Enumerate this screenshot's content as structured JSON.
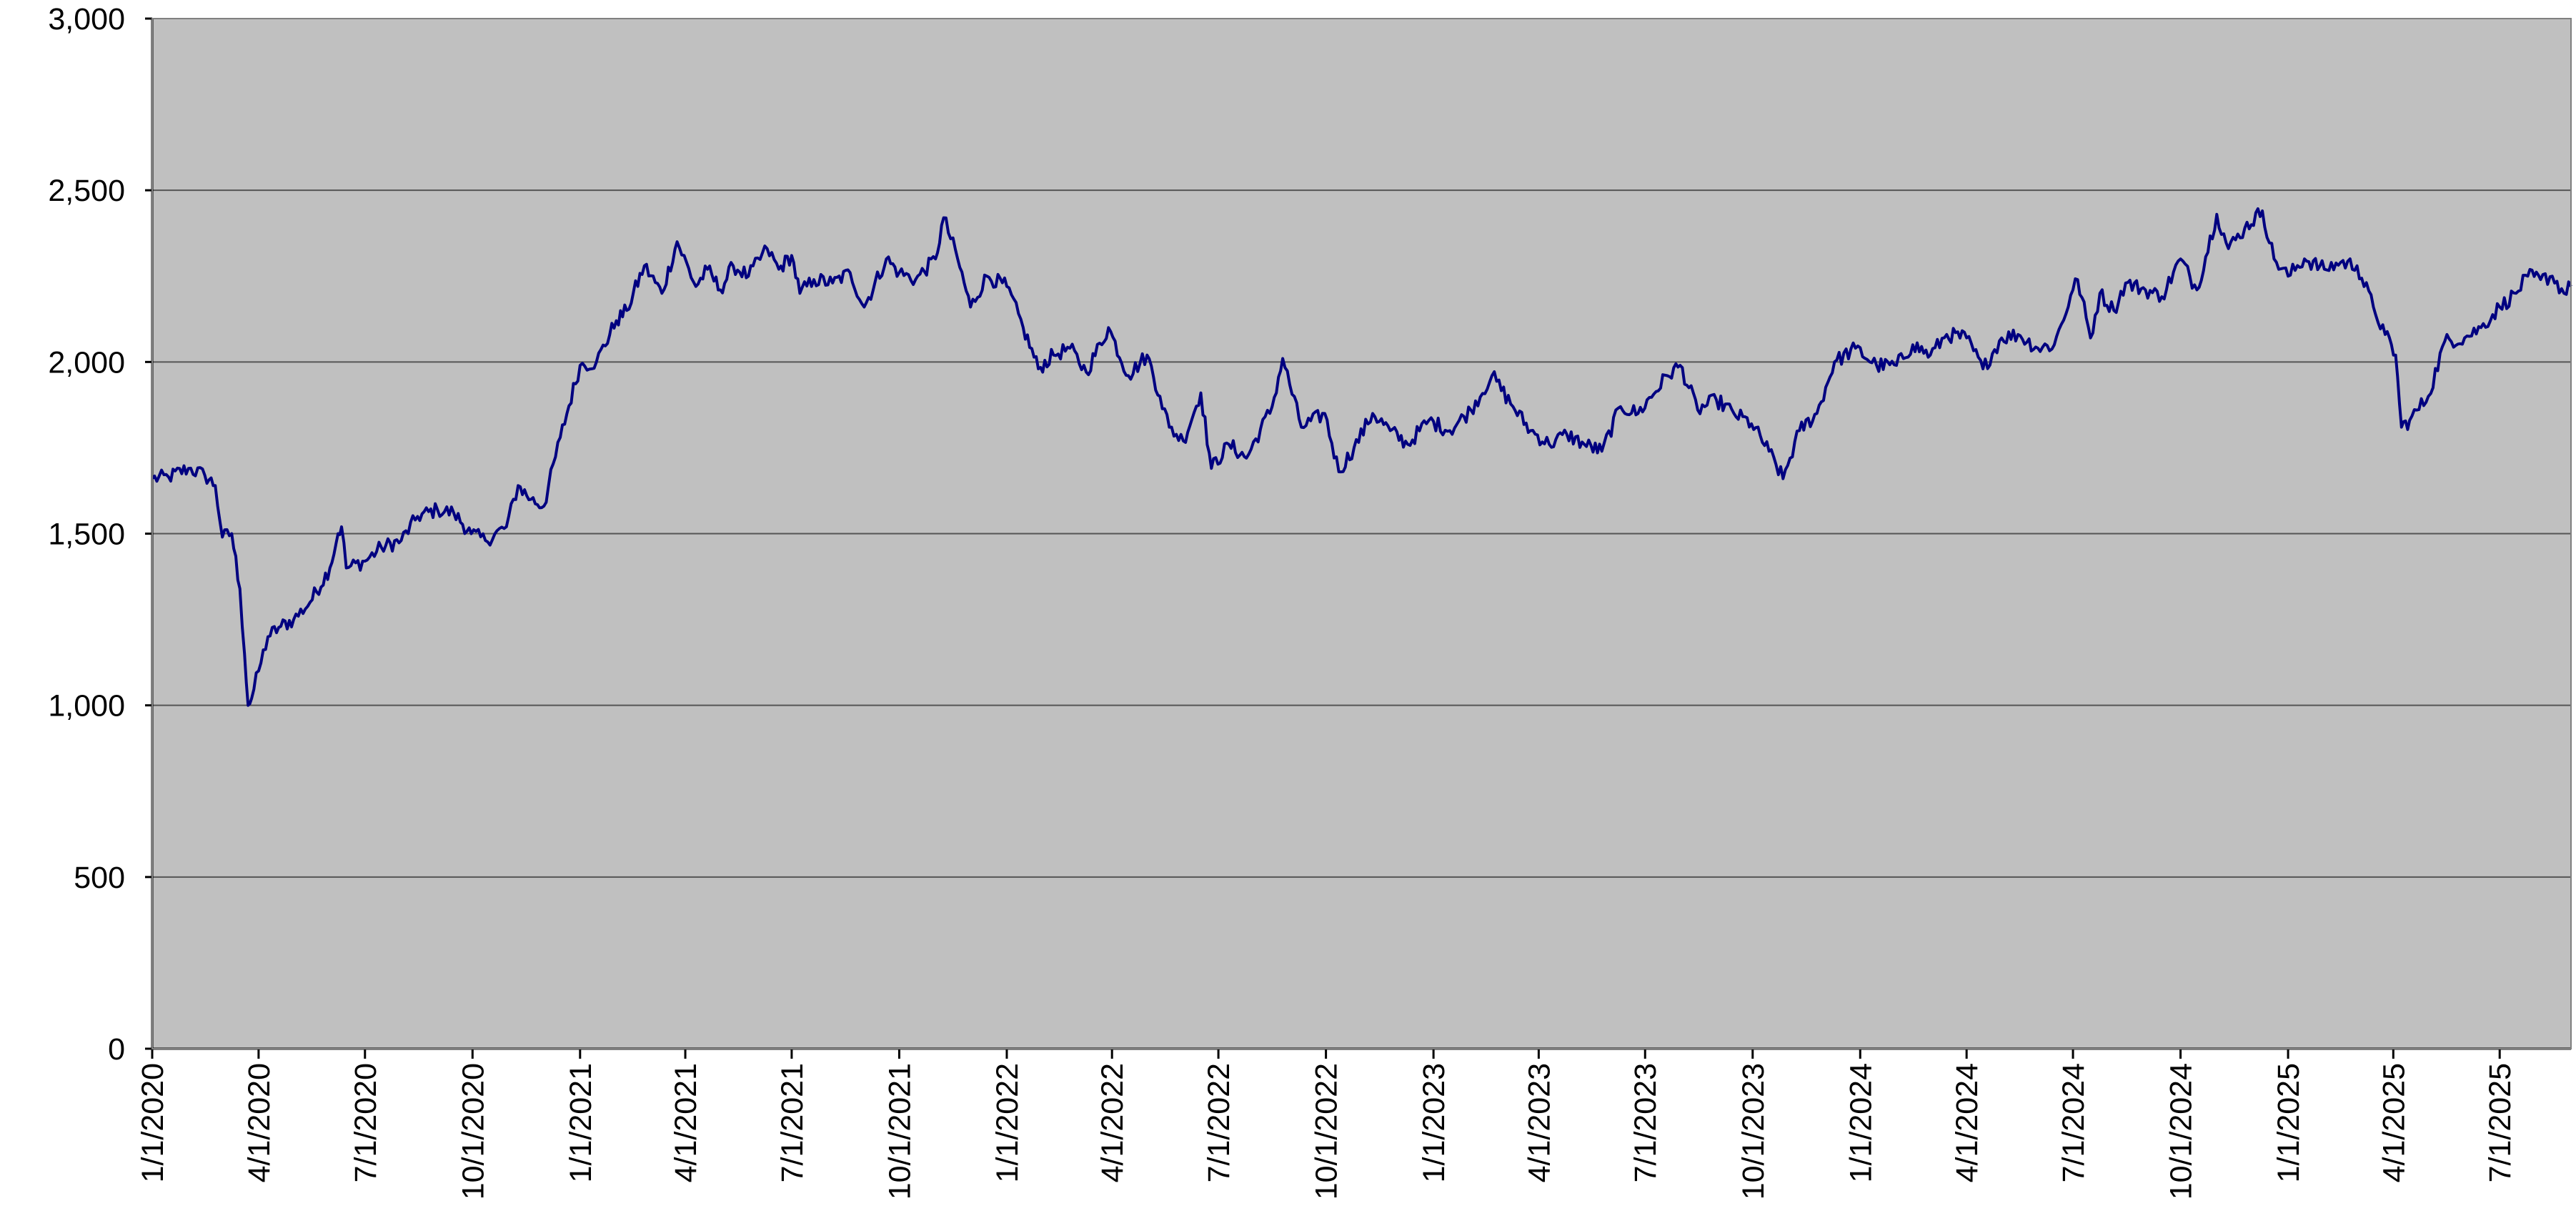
{
  "chart_data": {
    "type": "line",
    "title": "",
    "xlabel": "",
    "ylabel": "",
    "ylim": [
      0,
      3000
    ],
    "yticks": [
      "0",
      "500",
      "1,000",
      "1,500",
      "2,000",
      "2,500",
      "3,000"
    ],
    "ytick_values": [
      0,
      500,
      1000,
      1500,
      2000,
      2500,
      3000
    ],
    "xlim": [
      "2020-01-01",
      "2025-08-31"
    ],
    "xticks": [
      "1/1/2020",
      "4/1/2020",
      "7/1/2020",
      "10/1/2020",
      "1/1/2021",
      "4/1/2021",
      "7/1/2021",
      "10/1/2021",
      "1/1/2022",
      "4/1/2022",
      "7/1/2022",
      "10/1/2022",
      "1/1/2023",
      "4/1/2023",
      "7/1/2023",
      "10/1/2023",
      "1/1/2024",
      "4/1/2024",
      "7/1/2024",
      "10/1/2024",
      "1/1/2025",
      "4/1/2025",
      "7/1/2025"
    ],
    "xtick_dates": [
      "2020-01-01",
      "2020-04-01",
      "2020-07-01",
      "2020-10-01",
      "2021-01-01",
      "2021-04-01",
      "2021-07-01",
      "2021-10-01",
      "2022-01-01",
      "2022-04-01",
      "2022-07-01",
      "2022-10-01",
      "2023-01-01",
      "2023-04-01",
      "2023-07-01",
      "2023-10-01",
      "2024-01-01",
      "2024-04-01",
      "2024-07-01",
      "2024-10-01",
      "2025-01-01",
      "2025-04-01",
      "2025-07-01"
    ],
    "grid": true,
    "legend": "none",
    "colors": {
      "plot_bg": "#c0c0c0",
      "line": "#000080",
      "grid": "#555555",
      "axis": "#000000"
    },
    "series": [
      {
        "x": [
          "2020-01-01",
          "2020-01-15",
          "2020-02-01",
          "2020-02-15",
          "2020-02-24",
          "2020-03-01",
          "2020-03-09",
          "2020-03-16",
          "2020-03-20",
          "2020-03-23",
          "2020-03-26",
          "2020-04-01",
          "2020-04-09",
          "2020-04-20",
          "2020-05-01",
          "2020-05-15",
          "2020-06-01",
          "2020-06-08",
          "2020-06-11",
          "2020-06-15",
          "2020-07-01",
          "2020-07-15",
          "2020-08-01",
          "2020-08-15",
          "2020-09-01",
          "2020-09-15",
          "2020-09-30",
          "2020-10-12",
          "2020-10-30",
          "2020-11-09",
          "2020-11-20",
          "2020-12-01",
          "2020-12-15",
          "2021-01-01",
          "2021-01-15",
          "2021-02-01",
          "2021-02-10",
          "2021-02-25",
          "2021-03-12",
          "2021-03-25",
          "2021-04-10",
          "2021-04-20",
          "2021-05-01",
          "2021-05-12",
          "2021-05-25",
          "2021-06-10",
          "2021-06-20",
          "2021-07-01",
          "2021-07-08",
          "2021-07-20",
          "2021-08-05",
          "2021-08-20",
          "2021-09-01",
          "2021-09-20",
          "2021-10-01",
          "2021-10-15",
          "2021-11-01",
          "2021-11-08",
          "2021-11-20",
          "2021-12-01",
          "2021-12-15",
          "2022-01-01",
          "2022-01-15",
          "2022-01-28",
          "2022-02-10",
          "2022-02-24",
          "2022-03-10",
          "2022-03-29",
          "2022-04-15",
          "2022-05-01",
          "2022-05-12",
          "2022-05-20",
          "2022-06-01",
          "2022-06-16",
          "2022-06-25",
          "2022-07-10",
          "2022-07-25",
          "2022-08-16",
          "2022-08-25",
          "2022-09-10",
          "2022-09-30",
          "2022-10-12",
          "2022-10-25",
          "2022-11-10",
          "2022-11-25",
          "2022-12-10",
          "2022-12-28",
          "2023-01-15",
          "2023-02-02",
          "2023-02-20",
          "2023-03-10",
          "2023-03-25",
          "2023-04-10",
          "2023-04-25",
          "2023-05-10",
          "2023-05-25",
          "2023-06-10",
          "2023-06-25",
          "2023-07-20",
          "2023-07-31",
          "2023-08-15",
          "2023-08-31",
          "2023-09-15",
          "2023-09-30",
          "2023-10-15",
          "2023-10-27",
          "2023-11-10",
          "2023-11-25",
          "2023-12-10",
          "2023-12-28",
          "2024-01-15",
          "2024-02-01",
          "2024-02-15",
          "2024-03-01",
          "2024-03-15",
          "2024-04-01",
          "2024-04-15",
          "2024-05-01",
          "2024-05-15",
          "2024-06-01",
          "2024-06-15",
          "2024-07-01",
          "2024-07-05",
          "2024-07-16",
          "2024-07-24",
          "2024-08-05",
          "2024-08-15",
          "2024-09-01",
          "2024-09-15",
          "2024-10-01",
          "2024-10-15",
          "2024-11-01",
          "2024-11-11",
          "2024-11-25",
          "2024-12-10",
          "2024-12-20",
          "2025-01-01",
          "2025-01-15",
          "2025-02-01",
          "2025-02-15",
          "2025-03-01",
          "2025-03-15",
          "2025-03-25",
          "2025-04-03",
          "2025-04-08",
          "2025-04-15",
          "2025-05-01",
          "2025-05-15",
          "2025-06-01",
          "2025-06-15",
          "2025-07-01",
          "2025-07-15",
          "2025-07-25",
          "2025-08-05",
          "2025-08-15",
          "2025-08-25",
          "2025-08-31"
        ],
        "y": [
          1660,
          1665,
          1690,
          1670,
          1640,
          1490,
          1500,
          1340,
          1150,
          1000,
          1020,
          1100,
          1200,
          1230,
          1250,
          1300,
          1400,
          1500,
          1520,
          1400,
          1420,
          1460,
          1480,
          1550,
          1570,
          1560,
          1500,
          1480,
          1520,
          1640,
          1600,
          1580,
          1780,
          1990,
          2000,
          2120,
          2150,
          2280,
          2200,
          2350,
          2220,
          2270,
          2210,
          2280,
          2250,
          2330,
          2270,
          2310,
          2200,
          2240,
          2230,
          2260,
          2160,
          2300,
          2260,
          2240,
          2300,
          2420,
          2300,
          2160,
          2250,
          2220,
          2100,
          1980,
          2020,
          2040,
          1970,
          2100,
          1960,
          2020,
          1900,
          1810,
          1770,
          1910,
          1690,
          1760,
          1720,
          1870,
          2010,
          1810,
          1850,
          1680,
          1750,
          1850,
          1800,
          1760,
          1830,
          1800,
          1860,
          1960,
          1870,
          1800,
          1760,
          1790,
          1760,
          1740,
          1870,
          1850,
          1960,
          1990,
          1860,
          1890,
          1850,
          1820,
          1740,
          1660,
          1800,
          1850,
          2000,
          2040,
          1990,
          1990,
          2050,
          2020,
          2080,
          2070,
          1980,
          2070,
          2080,
          2040,
          2050,
          2210,
          2240,
          2070,
          2200,
          2150,
          2230,
          2210,
          2190,
          2300,
          2210,
          2430,
          2330,
          2390,
          2440,
          2300,
          2250,
          2300,
          2270,
          2290,
          2280,
          2160,
          2080,
          2020,
          1810,
          1830,
          1900,
          2060,
          2070,
          2100,
          2160,
          2200,
          2250,
          2240,
          2250,
          2200,
          2220
        ]
      }
    ]
  }
}
